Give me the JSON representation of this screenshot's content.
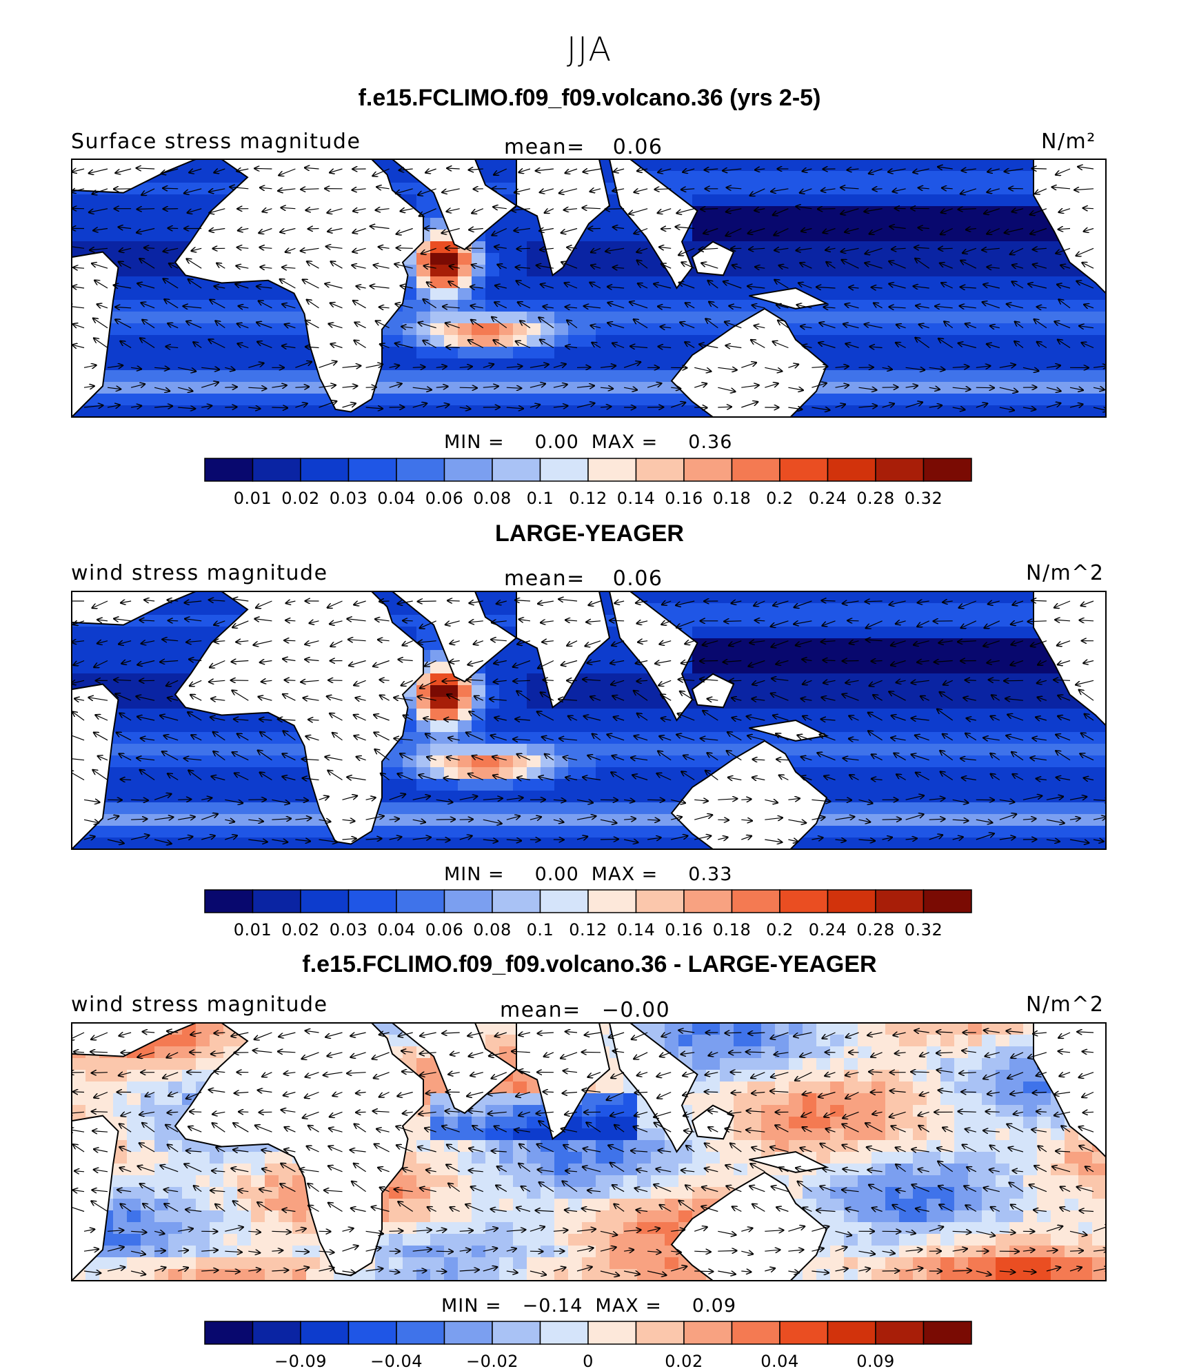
{
  "season": "JJA",
  "panels": [
    {
      "title": "f.e15.FCLIMO.f09_f09.volcano.36 (yrs 2-5)",
      "variable": "Surface stress magnitude",
      "mean_label": "mean=",
      "mean_value": "0.06",
      "units": "N/m²",
      "min_label": "MIN =",
      "min_value": "0.00",
      "max_label": "MAX =",
      "max_value": "0.36",
      "field": "absolute",
      "colorbar_ticks": [
        "0.01",
        "0.02",
        "0.03",
        "0.04",
        "0.06",
        "0.08",
        "0.1",
        "0.12",
        "0.14",
        "0.16",
        "0.18",
        "0.2",
        "0.24",
        "0.28",
        "0.32"
      ]
    },
    {
      "title": "LARGE-YEAGER",
      "variable": "wind stress magnitude",
      "mean_label": "mean=",
      "mean_value": "0.06",
      "units": "N/m^2",
      "min_label": "MIN =",
      "min_value": "0.00",
      "max_label": "MAX =",
      "max_value": "0.33",
      "field": "absolute",
      "colorbar_ticks": [
        "0.01",
        "0.02",
        "0.03",
        "0.04",
        "0.06",
        "0.08",
        "0.1",
        "0.12",
        "0.14",
        "0.16",
        "0.18",
        "0.2",
        "0.24",
        "0.28",
        "0.32"
      ]
    },
    {
      "title": "f.e15.FCLIMO.f09_f09.volcano.36 - LARGE-YEAGER",
      "variable": "wind stress magnitude",
      "mean_label": "mean=",
      "mean_value": "−0.00",
      "units": "N/m^2",
      "min_label": "MIN =",
      "min_value": "−0.14",
      "max_label": "MAX =",
      "max_value": "0.09",
      "field": "difference",
      "colorbar_ticks": [
        "−0.09",
        "−0.04",
        "−0.02",
        "0",
        "0.02",
        "0.04",
        "0.09"
      ]
    }
  ],
  "colorbar_colors": [
    "#08086e",
    "#0a24a3",
    "#0d3ccd",
    "#1f56e6",
    "#3f73ea",
    "#7b9ff0",
    "#a9c2f5",
    "#d5e4fa",
    "#fde8da",
    "#fbc7ac",
    "#f8a281",
    "#f47a52",
    "#ea4e22",
    "#d2330c",
    "#a81e08",
    "#7a0b03"
  ],
  "land_color": "#ffffff",
  "coast_color": "#000000"
}
